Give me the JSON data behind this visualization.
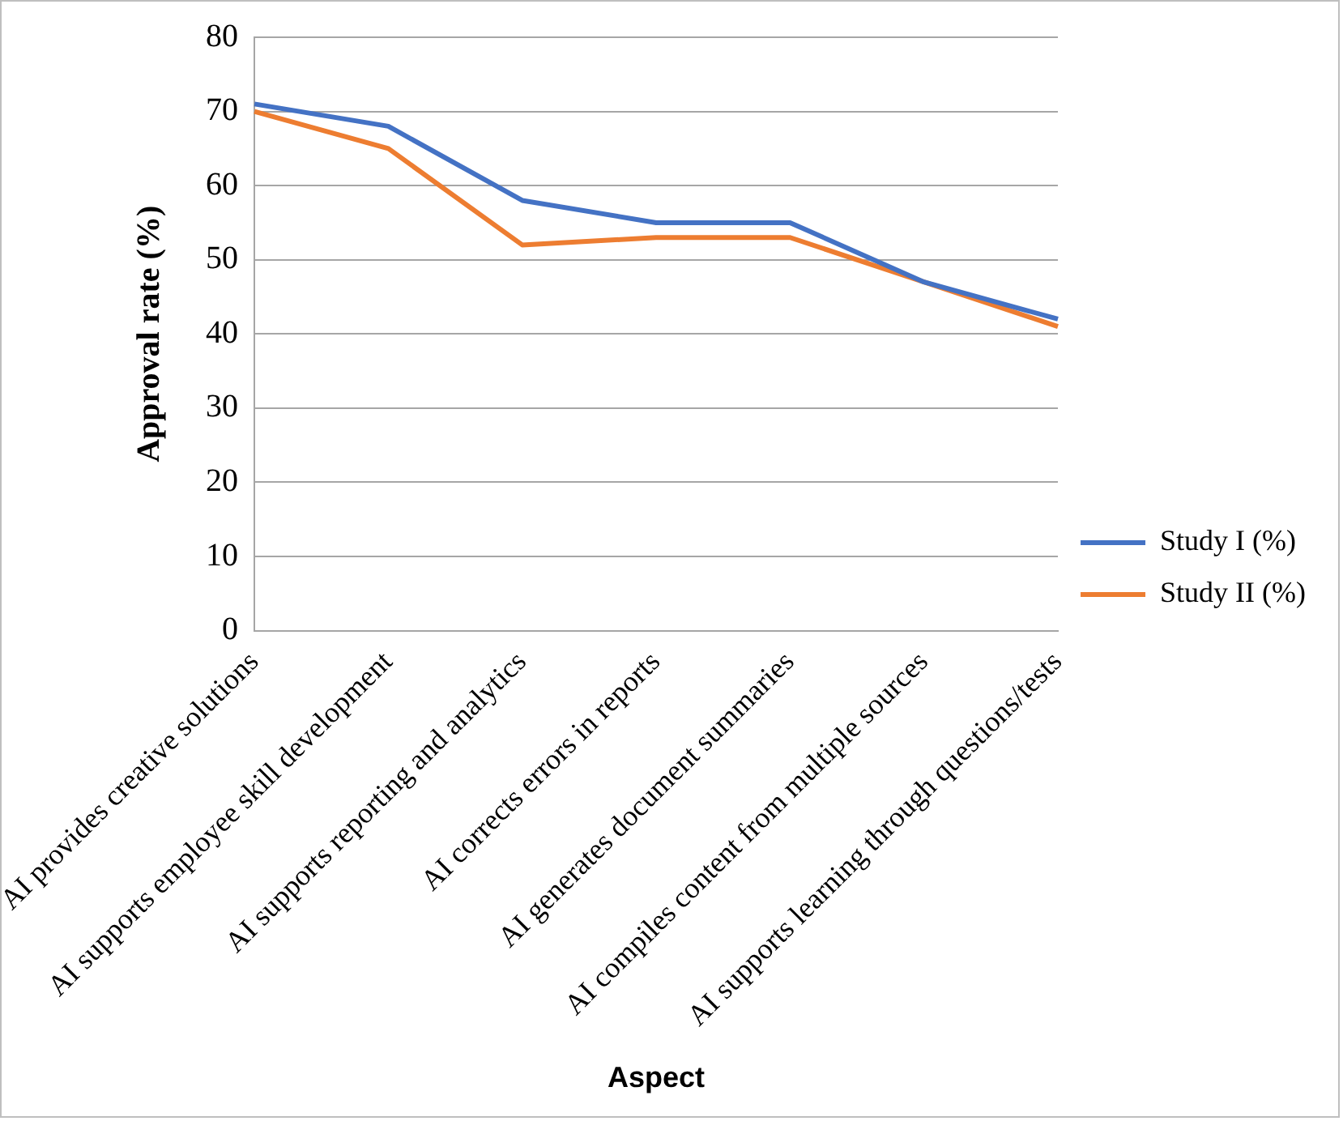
{
  "chart_data": {
    "type": "line",
    "xlabel": "Aspect",
    "ylabel": "Approval rate (%)",
    "categories": [
      "AI provides creative solutions",
      "AI supports employee skill development",
      "AI supports reporting and analytics",
      "AI corrects errors in reports",
      "AI generates document summaries",
      "AI compiles content from multiple sources",
      "AI supports learning through questions/tests"
    ],
    "series": [
      {
        "name": "Study I (%)",
        "color": "#4472c4",
        "values": [
          71,
          68,
          58,
          55,
          55,
          47,
          42
        ]
      },
      {
        "name": "Study II (%)",
        "color": "#ed7d31",
        "values": [
          70,
          65,
          52,
          53,
          53,
          47,
          41
        ]
      }
    ],
    "ylim": [
      0,
      80
    ],
    "yticks": [
      0,
      10,
      20,
      30,
      40,
      50,
      60,
      70,
      80
    ],
    "grid": "y",
    "legend": "right",
    "marker": "none"
  }
}
